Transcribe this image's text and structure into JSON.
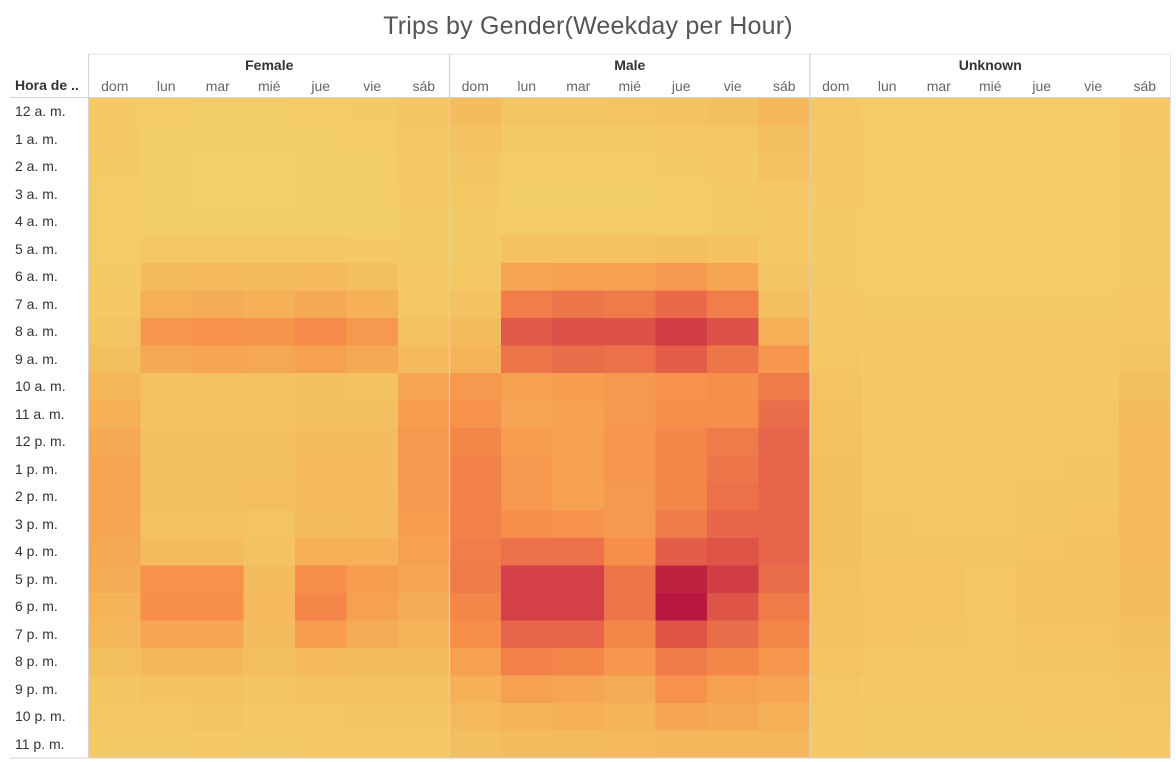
{
  "chart_data": {
    "type": "heatmap",
    "title": "Trips by Gender(Weekday per Hour)",
    "row_header": "Hora de ..",
    "groups": [
      "Female",
      "Male",
      "Unknown"
    ],
    "days": [
      "dom",
      "lun",
      "mar",
      "mié",
      "jue",
      "vie",
      "sáb"
    ],
    "hours": [
      "12 a. m.",
      "1 a. m.",
      "2 a. m.",
      "3 a. m.",
      "4 a. m.",
      "5 a. m.",
      "6 a. m.",
      "7 a. m.",
      "8 a. m.",
      "9 a. m.",
      "10 a. m.",
      "11 a. m.",
      "12 p. m.",
      "1 p. m.",
      "2 p. m.",
      "3 p. m.",
      "4 p. m.",
      "5 p. m.",
      "6 p. m.",
      "7 p. m.",
      "8 p. m.",
      "9 p. m.",
      "10 p. m.",
      "11 p. m."
    ],
    "color_scale": [
      "#f3d06a",
      "#f5b45a",
      "#f78e4a",
      "#e7654a",
      "#d13d45",
      "#b9173f"
    ],
    "values": {
      "Female": [
        [
          0.05,
          0.03,
          0.02,
          0.02,
          0.03,
          0.04,
          0.08
        ],
        [
          0.05,
          0.02,
          0.02,
          0.02,
          0.02,
          0.03,
          0.07
        ],
        [
          0.04,
          0.02,
          0.01,
          0.01,
          0.02,
          0.02,
          0.06
        ],
        [
          0.03,
          0.02,
          0.01,
          0.01,
          0.02,
          0.02,
          0.05
        ],
        [
          0.03,
          0.02,
          0.02,
          0.02,
          0.02,
          0.02,
          0.04
        ],
        [
          0.03,
          0.06,
          0.06,
          0.06,
          0.06,
          0.05,
          0.04
        ],
        [
          0.04,
          0.14,
          0.15,
          0.14,
          0.15,
          0.12,
          0.05
        ],
        [
          0.05,
          0.22,
          0.24,
          0.22,
          0.26,
          0.22,
          0.07
        ],
        [
          0.08,
          0.36,
          0.38,
          0.37,
          0.42,
          0.34,
          0.1
        ],
        [
          0.12,
          0.26,
          0.28,
          0.27,
          0.3,
          0.26,
          0.16
        ],
        [
          0.18,
          0.1,
          0.1,
          0.1,
          0.12,
          0.11,
          0.28
        ],
        [
          0.22,
          0.1,
          0.1,
          0.1,
          0.12,
          0.12,
          0.32
        ],
        [
          0.26,
          0.12,
          0.12,
          0.12,
          0.14,
          0.14,
          0.34
        ],
        [
          0.28,
          0.12,
          0.12,
          0.12,
          0.15,
          0.15,
          0.34
        ],
        [
          0.28,
          0.12,
          0.12,
          0.13,
          0.15,
          0.16,
          0.34
        ],
        [
          0.28,
          0.1,
          0.1,
          0.09,
          0.14,
          0.16,
          0.32
        ],
        [
          0.26,
          0.14,
          0.14,
          0.1,
          0.22,
          0.22,
          0.3
        ],
        [
          0.24,
          0.38,
          0.38,
          0.14,
          0.4,
          0.32,
          0.28
        ],
        [
          0.2,
          0.4,
          0.4,
          0.16,
          0.44,
          0.3,
          0.24
        ],
        [
          0.18,
          0.28,
          0.28,
          0.14,
          0.32,
          0.24,
          0.2
        ],
        [
          0.12,
          0.18,
          0.18,
          0.12,
          0.16,
          0.14,
          0.14
        ],
        [
          0.08,
          0.1,
          0.1,
          0.08,
          0.1,
          0.1,
          0.1
        ],
        [
          0.06,
          0.06,
          0.08,
          0.06,
          0.07,
          0.08,
          0.08
        ],
        [
          0.04,
          0.04,
          0.05,
          0.04,
          0.05,
          0.06,
          0.06
        ]
      ],
      "Male": [
        [
          0.14,
          0.08,
          0.08,
          0.09,
          0.1,
          0.12,
          0.18
        ],
        [
          0.1,
          0.04,
          0.04,
          0.04,
          0.06,
          0.07,
          0.12
        ],
        [
          0.08,
          0.03,
          0.03,
          0.03,
          0.04,
          0.05,
          0.1
        ],
        [
          0.06,
          0.02,
          0.02,
          0.02,
          0.03,
          0.04,
          0.07
        ],
        [
          0.04,
          0.03,
          0.03,
          0.03,
          0.03,
          0.04,
          0.05
        ],
        [
          0.04,
          0.1,
          0.1,
          0.1,
          0.12,
          0.1,
          0.05
        ],
        [
          0.06,
          0.28,
          0.3,
          0.3,
          0.34,
          0.28,
          0.08
        ],
        [
          0.1,
          0.48,
          0.52,
          0.5,
          0.58,
          0.48,
          0.12
        ],
        [
          0.14,
          0.66,
          0.7,
          0.7,
          0.8,
          0.7,
          0.22
        ],
        [
          0.2,
          0.52,
          0.56,
          0.54,
          0.64,
          0.52,
          0.36
        ],
        [
          0.34,
          0.3,
          0.32,
          0.34,
          0.38,
          0.4,
          0.5
        ],
        [
          0.38,
          0.28,
          0.3,
          0.34,
          0.4,
          0.4,
          0.56
        ],
        [
          0.44,
          0.32,
          0.3,
          0.36,
          0.44,
          0.5,
          0.6
        ],
        [
          0.46,
          0.34,
          0.3,
          0.36,
          0.44,
          0.52,
          0.6
        ],
        [
          0.46,
          0.34,
          0.3,
          0.34,
          0.44,
          0.54,
          0.6
        ],
        [
          0.46,
          0.4,
          0.38,
          0.34,
          0.5,
          0.6,
          0.6
        ],
        [
          0.48,
          0.54,
          0.54,
          0.4,
          0.64,
          0.68,
          0.6
        ],
        [
          0.5,
          0.78,
          0.78,
          0.52,
          0.95,
          0.8,
          0.56
        ],
        [
          0.44,
          0.78,
          0.78,
          0.52,
          1.0,
          0.68,
          0.5
        ],
        [
          0.4,
          0.6,
          0.6,
          0.44,
          0.68,
          0.56,
          0.44
        ],
        [
          0.3,
          0.46,
          0.44,
          0.36,
          0.5,
          0.44,
          0.36
        ],
        [
          0.22,
          0.3,
          0.28,
          0.24,
          0.38,
          0.3,
          0.28
        ],
        [
          0.16,
          0.2,
          0.22,
          0.2,
          0.28,
          0.26,
          0.22
        ],
        [
          0.12,
          0.14,
          0.14,
          0.16,
          0.18,
          0.18,
          0.18
        ]
      ],
      "Unknown": [
        [
          0.06,
          0.03,
          0.03,
          0.03,
          0.03,
          0.03,
          0.05
        ],
        [
          0.05,
          0.03,
          0.03,
          0.03,
          0.03,
          0.03,
          0.05
        ],
        [
          0.05,
          0.03,
          0.03,
          0.03,
          0.03,
          0.03,
          0.04
        ],
        [
          0.05,
          0.03,
          0.03,
          0.03,
          0.03,
          0.03,
          0.04
        ],
        [
          0.04,
          0.03,
          0.03,
          0.03,
          0.03,
          0.03,
          0.04
        ],
        [
          0.04,
          0.03,
          0.03,
          0.03,
          0.03,
          0.03,
          0.04
        ],
        [
          0.04,
          0.03,
          0.03,
          0.03,
          0.03,
          0.03,
          0.04
        ],
        [
          0.05,
          0.04,
          0.04,
          0.04,
          0.04,
          0.04,
          0.05
        ],
        [
          0.06,
          0.05,
          0.05,
          0.06,
          0.06,
          0.05,
          0.06
        ],
        [
          0.07,
          0.05,
          0.05,
          0.05,
          0.05,
          0.05,
          0.08
        ],
        [
          0.09,
          0.05,
          0.05,
          0.05,
          0.05,
          0.06,
          0.12
        ],
        [
          0.1,
          0.05,
          0.05,
          0.06,
          0.06,
          0.06,
          0.14
        ],
        [
          0.11,
          0.06,
          0.06,
          0.06,
          0.07,
          0.07,
          0.15
        ],
        [
          0.12,
          0.06,
          0.06,
          0.07,
          0.07,
          0.08,
          0.15
        ],
        [
          0.12,
          0.07,
          0.07,
          0.07,
          0.08,
          0.08,
          0.15
        ],
        [
          0.12,
          0.08,
          0.07,
          0.07,
          0.08,
          0.09,
          0.15
        ],
        [
          0.12,
          0.08,
          0.08,
          0.08,
          0.09,
          0.1,
          0.15
        ],
        [
          0.11,
          0.09,
          0.09,
          0.07,
          0.1,
          0.1,
          0.14
        ],
        [
          0.1,
          0.09,
          0.09,
          0.07,
          0.1,
          0.1,
          0.14
        ],
        [
          0.1,
          0.09,
          0.08,
          0.07,
          0.09,
          0.09,
          0.12
        ],
        [
          0.09,
          0.07,
          0.07,
          0.06,
          0.08,
          0.08,
          0.1
        ],
        [
          0.07,
          0.05,
          0.05,
          0.05,
          0.06,
          0.06,
          0.08
        ],
        [
          0.06,
          0.04,
          0.04,
          0.04,
          0.05,
          0.05,
          0.07
        ],
        [
          0.05,
          0.04,
          0.04,
          0.04,
          0.04,
          0.04,
          0.05
        ]
      ]
    }
  }
}
